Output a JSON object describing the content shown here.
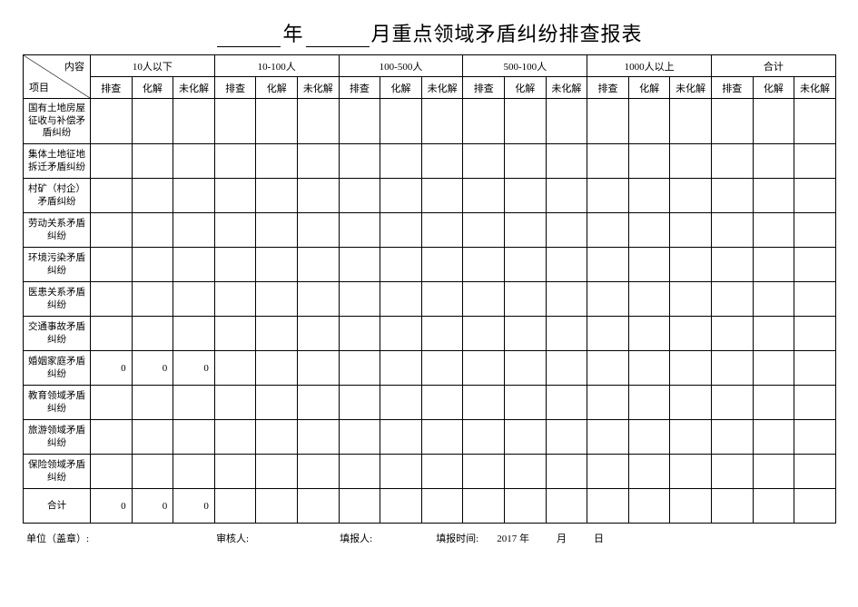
{
  "title": {
    "prefix": "",
    "year_label": "年",
    "month_label": "月重点领域矛盾纠纷排查报表"
  },
  "corner": {
    "top": "内容",
    "bottom": "项目"
  },
  "groups": [
    "10人以下",
    "10-100人",
    "100-500人",
    "500-100人",
    "1000人以上",
    "合计"
  ],
  "subcols": [
    "排查",
    "化解",
    "未化解"
  ],
  "rows": [
    {
      "label": "国有土地房屋征收与补偿矛盾纠纷",
      "cells": [
        "",
        "",
        "",
        "",
        "",
        "",
        "",
        "",
        "",
        "",
        "",
        "",
        "",
        "",
        "",
        "",
        "",
        ""
      ]
    },
    {
      "label": "集体土地征地拆迁矛盾纠纷",
      "cells": [
        "",
        "",
        "",
        "",
        "",
        "",
        "",
        "",
        "",
        "",
        "",
        "",
        "",
        "",
        "",
        "",
        "",
        ""
      ]
    },
    {
      "label": "村矿（村企）矛盾纠纷",
      "cells": [
        "",
        "",
        "",
        "",
        "",
        "",
        "",
        "",
        "",
        "",
        "",
        "",
        "",
        "",
        "",
        "",
        "",
        ""
      ]
    },
    {
      "label": "劳动关系矛盾纠纷",
      "cells": [
        "",
        "",
        "",
        "",
        "",
        "",
        "",
        "",
        "",
        "",
        "",
        "",
        "",
        "",
        "",
        "",
        "",
        ""
      ]
    },
    {
      "label": "环境污染矛盾纠纷",
      "cells": [
        "",
        "",
        "",
        "",
        "",
        "",
        "",
        "",
        "",
        "",
        "",
        "",
        "",
        "",
        "",
        "",
        "",
        ""
      ]
    },
    {
      "label": "医患关系矛盾纠纷",
      "cells": [
        "",
        "",
        "",
        "",
        "",
        "",
        "",
        "",
        "",
        "",
        "",
        "",
        "",
        "",
        "",
        "",
        "",
        ""
      ]
    },
    {
      "label": "交通事故矛盾纠纷",
      "cells": [
        "",
        "",
        "",
        "",
        "",
        "",
        "",
        "",
        "",
        "",
        "",
        "",
        "",
        "",
        "",
        "",
        "",
        ""
      ]
    },
    {
      "label": "婚姻家庭矛盾纠纷",
      "cells": [
        "0",
        "0",
        "0",
        "",
        "",
        "",
        "",
        "",
        "",
        "",
        "",
        "",
        "",
        "",
        "",
        "",
        "",
        ""
      ]
    },
    {
      "label": "教育领域矛盾纠纷",
      "cells": [
        "",
        "",
        "",
        "",
        "",
        "",
        "",
        "",
        "",
        "",
        "",
        "",
        "",
        "",
        "",
        "",
        "",
        ""
      ]
    },
    {
      "label": "旅游领域矛盾纠纷",
      "cells": [
        "",
        "",
        "",
        "",
        "",
        "",
        "",
        "",
        "",
        "",
        "",
        "",
        "",
        "",
        "",
        "",
        "",
        ""
      ]
    },
    {
      "label": "保险领域矛盾纠纷",
      "cells": [
        "",
        "",
        "",
        "",
        "",
        "",
        "",
        "",
        "",
        "",
        "",
        "",
        "",
        "",
        "",
        "",
        "",
        ""
      ]
    },
    {
      "label": "合计",
      "cells": [
        "0",
        "0",
        "0",
        "",
        "",
        "",
        "",
        "",
        "",
        "",
        "",
        "",
        "",
        "",
        "",
        "",
        "",
        ""
      ]
    }
  ],
  "footer": {
    "unit": "单位（盖章）:",
    "reviewer": "审核人:",
    "reporter": "填报人:",
    "report_time_label": "填报时间:",
    "year": "2017 年",
    "month": "月",
    "day": "日"
  },
  "style": {
    "background": "#ffffff",
    "border_color": "#000000",
    "title_fontsize": 22,
    "cell_fontsize": 11,
    "footer_fontsize": 11
  }
}
